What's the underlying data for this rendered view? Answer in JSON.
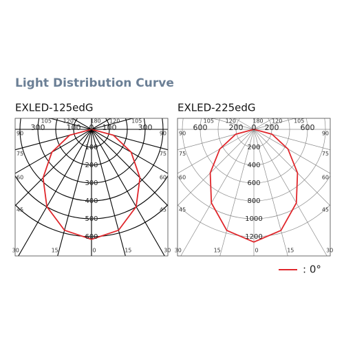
{
  "title": "Light Distribution Curve",
  "chart_data": [
    {
      "type": "polar",
      "title": "EXLED-125edG",
      "grid_color": "#000000",
      "grid_width": 1.1,
      "rlim": [
        0,
        700
      ],
      "rticks": [
        100,
        200,
        300,
        400,
        500,
        600
      ],
      "top_ticks": [
        300,
        100,
        0,
        100,
        300
      ],
      "angle_ticks": [
        0,
        15,
        30,
        45,
        60,
        75,
        90,
        105,
        120,
        180
      ],
      "series": [
        {
          "name": ": 0°",
          "color": "#e0262b",
          "angles": [
            -90,
            -75,
            -60,
            -45,
            -30,
            -15,
            0,
            15,
            30,
            45,
            60,
            75,
            90
          ],
          "values": [
            0,
            127,
            256,
            383,
            499,
            584,
            615,
            584,
            499,
            383,
            256,
            127,
            0
          ]
        }
      ]
    },
    {
      "type": "polar",
      "title": "EXLED-225edG",
      "grid_color": "#8a8a8a",
      "grid_width": 0.7,
      "rlim": [
        0,
        1400
      ],
      "rticks": [
        200,
        400,
        600,
        800,
        1000,
        1200
      ],
      "top_ticks": [
        600,
        200,
        0,
        200,
        600
      ],
      "angle_ticks": [
        0,
        15,
        30,
        45,
        60,
        75,
        90,
        105,
        120,
        180
      ],
      "series": [
        {
          "name": ": 0°",
          "color": "#e0262b",
          "angles": [
            -90,
            -75,
            -60,
            -45,
            -30,
            -15,
            0,
            15,
            30,
            45,
            60,
            75,
            90
          ],
          "values": [
            0,
            210,
            440,
            690,
            950,
            1170,
            1260,
            1170,
            950,
            690,
            440,
            210,
            0
          ]
        }
      ]
    }
  ]
}
